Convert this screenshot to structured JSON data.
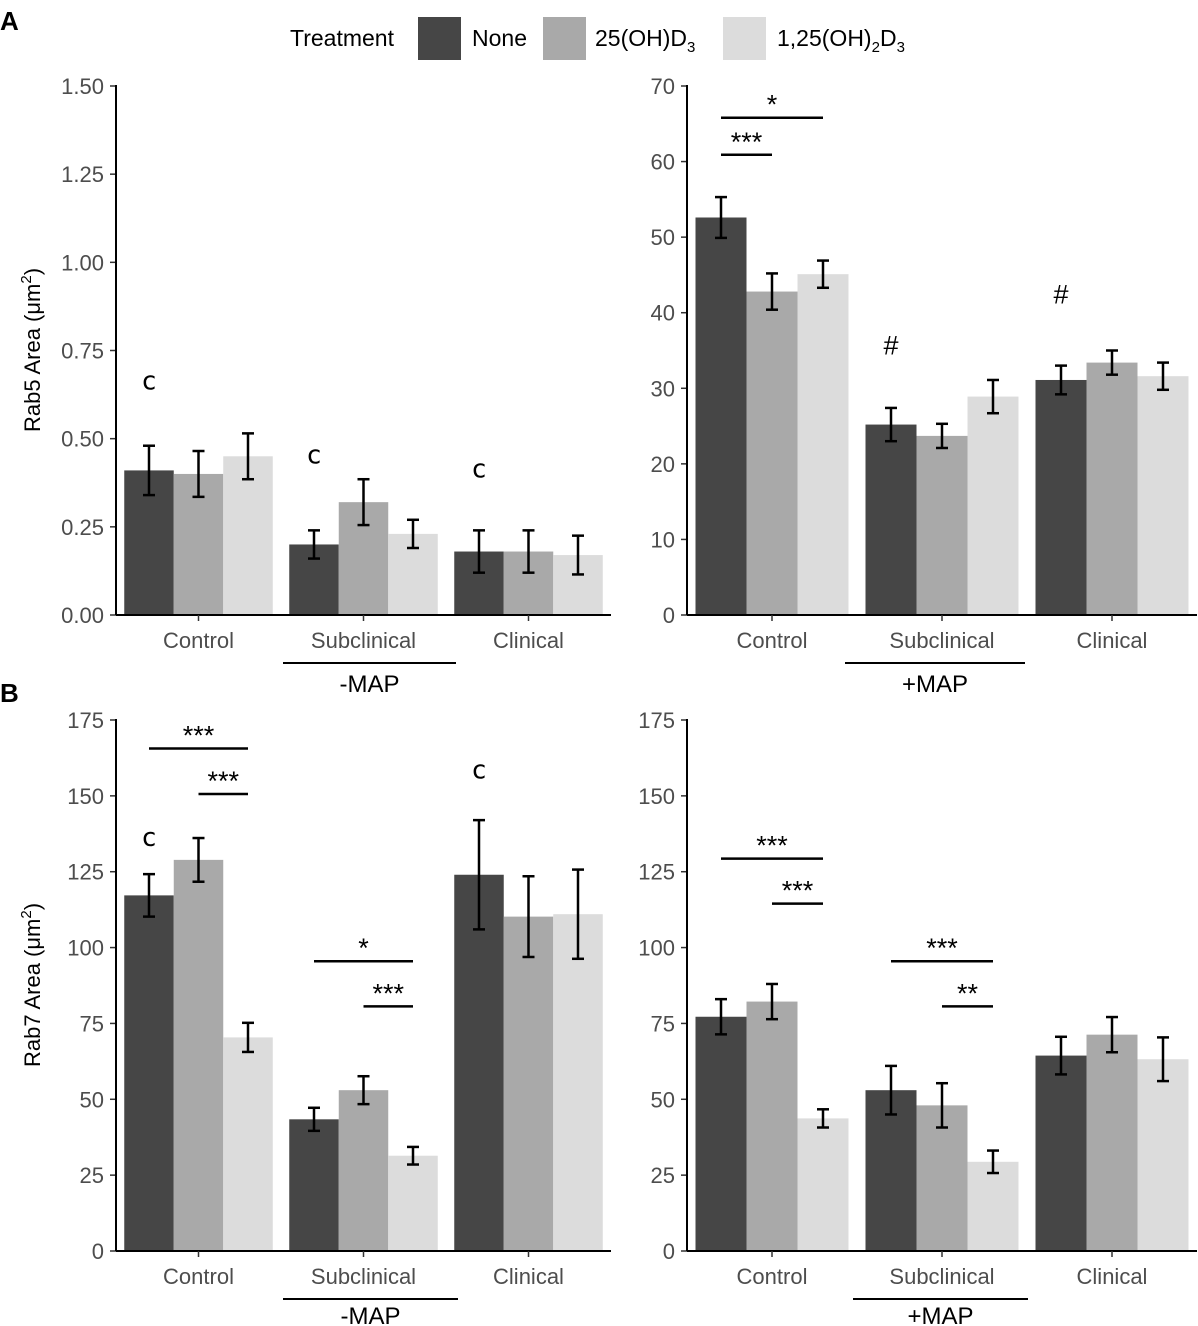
{
  "legend": {
    "title": "Treatment",
    "items": [
      {
        "label": "None",
        "color": "#464646"
      },
      {
        "label": "25(OH)D",
        "sub": "3",
        "color": "#a9a9a9"
      },
      {
        "label": "1,25(OH)",
        "sub": "2",
        "label2": "D",
        "sub2": "3",
        "color": "#dcdcdc"
      }
    ]
  },
  "categories": [
    "Control",
    "Subclinical",
    "Clinical"
  ],
  "rows": [
    {
      "letter": "A",
      "ylabel": "Rab5 Area (μm",
      "ylabel_sup": "2",
      "ylabel_end": ")"
    },
    {
      "letter": "B",
      "ylabel": "Rab7 Area (μm",
      "ylabel_sup": "2",
      "ylabel_end": ")"
    }
  ],
  "chart_data": [
    {
      "type": "bar",
      "panel": "A-left",
      "group_label": "-MAP",
      "ylim": [
        0,
        1.5
      ],
      "yticks": [
        "0.00",
        "0.25",
        "0.50",
        "0.75",
        "1.00",
        "1.25",
        "1.50"
      ],
      "series": [
        {
          "name": "None",
          "values": [
            0.41,
            0.2,
            0.18
          ],
          "err": [
            0.07,
            0.04,
            0.06
          ]
        },
        {
          "name": "25(OH)D3",
          "values": [
            0.4,
            0.32,
            0.18
          ],
          "err": [
            0.065,
            0.065,
            0.06
          ]
        },
        {
          "name": "1,25(OH)2D3",
          "values": [
            0.45,
            0.23,
            0.17
          ],
          "err": [
            0.065,
            0.04,
            0.055
          ]
        }
      ],
      "annotations": [
        {
          "text": "c",
          "cat": 0,
          "y": 0.64
        },
        {
          "text": "c",
          "cat": 1,
          "y": 0.43
        },
        {
          "text": "c",
          "cat": 2,
          "y": 0.39
        }
      ],
      "brackets": []
    },
    {
      "type": "bar",
      "panel": "A-right",
      "group_label": "+MAP",
      "ylim": [
        0,
        70
      ],
      "yticks": [
        "0",
        "10",
        "20",
        "30",
        "40",
        "50",
        "60",
        "70"
      ],
      "series": [
        {
          "name": "None",
          "values": [
            52.6,
            25.2,
            31.1
          ],
          "err": [
            2.7,
            2.2,
            1.9
          ]
        },
        {
          "name": "25(OH)D3",
          "values": [
            42.8,
            23.7,
            33.4
          ],
          "err": [
            2.4,
            1.6,
            1.6
          ]
        },
        {
          "name": "1,25(OH)2D3",
          "values": [
            45.1,
            28.9,
            31.6
          ],
          "err": [
            1.8,
            2.2,
            1.8
          ]
        }
      ],
      "annotations": [
        {
          "text": "#",
          "cat": 1,
          "y": 34.5
        },
        {
          "text": "#",
          "cat": 2,
          "y": 41.2
        }
      ],
      "brackets": [
        {
          "text": "***",
          "cat": 0,
          "from": 0,
          "to": 1,
          "y": 60.9
        },
        {
          "text": "*",
          "cat": 0,
          "from": 0,
          "to": 2,
          "y": 65.8
        }
      ]
    },
    {
      "type": "bar",
      "panel": "B-left",
      "group_label": "-MAP",
      "ylim": [
        0,
        175
      ],
      "yticks": [
        "0",
        "25",
        "50",
        "75",
        "100",
        "125",
        "150",
        "175"
      ],
      "series": [
        {
          "name": "None",
          "values": [
            117.2,
            43.4,
            124.0
          ],
          "err": [
            7.0,
            3.8,
            18.0
          ]
        },
        {
          "name": "25(OH)D3",
          "values": [
            128.9,
            53.0,
            110.2
          ],
          "err": [
            7.2,
            4.6,
            13.3
          ]
        },
        {
          "name": "1,25(OH)2D3",
          "values": [
            70.4,
            31.4,
            111.0
          ],
          "err": [
            4.8,
            2.9,
            14.7
          ]
        }
      ],
      "annotations": [
        {
          "text": "c",
          "cat": 0,
          "y": 133.5
        },
        {
          "text": "c",
          "cat": 2,
          "y": 155.8
        }
      ],
      "brackets": [
        {
          "text": "***",
          "cat": 0,
          "from": 1,
          "to": 2,
          "y": 150.6
        },
        {
          "text": "***",
          "cat": 0,
          "from": 0,
          "to": 2,
          "y": 165.6
        },
        {
          "text": "***",
          "cat": 1,
          "from": 1,
          "to": 2,
          "y": 80.6
        },
        {
          "text": "*",
          "cat": 1,
          "from": 0,
          "to": 2,
          "y": 95.5
        }
      ]
    },
    {
      "type": "bar",
      "panel": "B-right",
      "group_label": "+MAP",
      "ylim": [
        0,
        175
      ],
      "yticks": [
        "0",
        "25",
        "50",
        "75",
        "100",
        "125",
        "150",
        "175"
      ],
      "series": [
        {
          "name": "None",
          "values": [
            77.2,
            53.0,
            64.4
          ],
          "err": [
            5.8,
            8.0,
            6.2
          ]
        },
        {
          "name": "25(OH)D3",
          "values": [
            82.2,
            48.0,
            71.3
          ],
          "err": [
            5.8,
            7.3,
            5.8
          ]
        },
        {
          "name": "1,25(OH)2D3",
          "values": [
            43.7,
            29.4,
            63.2
          ],
          "err": [
            3.0,
            3.7,
            7.2
          ]
        }
      ],
      "annotations": [],
      "brackets": [
        {
          "text": "***",
          "cat": 0,
          "from": 1,
          "to": 2,
          "y": 114.5
        },
        {
          "text": "***",
          "cat": 0,
          "from": 0,
          "to": 2,
          "y": 129.3
        },
        {
          "text": "**",
          "cat": 1,
          "from": 1,
          "to": 2,
          "y": 80.6
        },
        {
          "text": "***",
          "cat": 1,
          "from": 0,
          "to": 2,
          "y": 95.5
        }
      ]
    }
  ]
}
